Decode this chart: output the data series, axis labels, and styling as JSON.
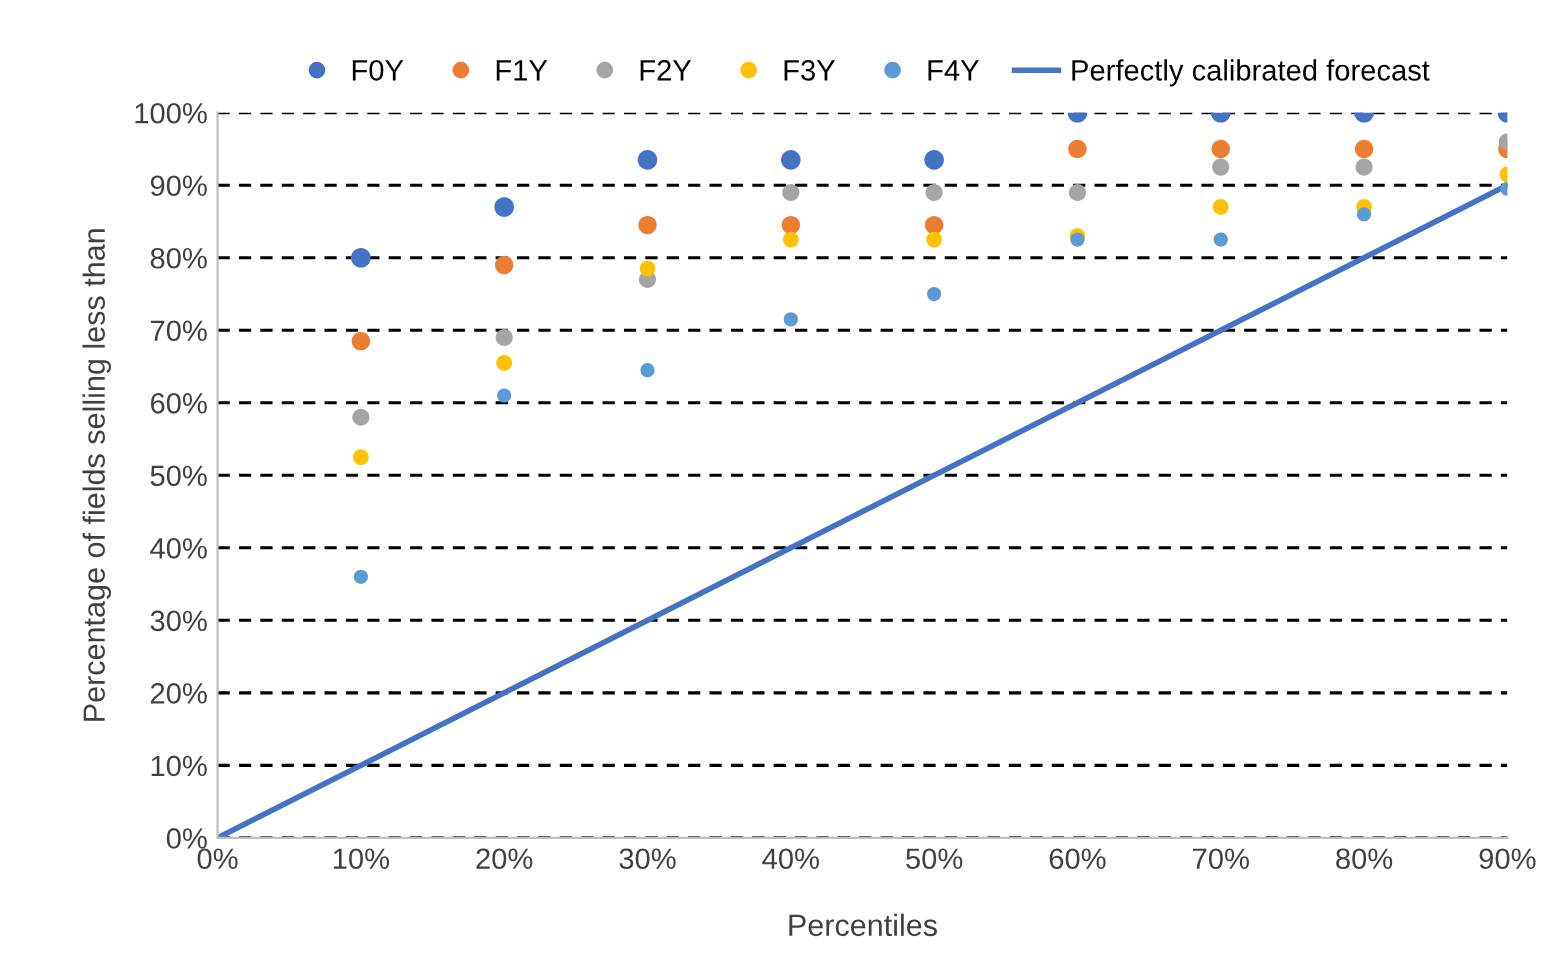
{
  "chart_data": {
    "type": "scatter",
    "xlabel": "Percentiles",
    "ylabel": "Percentage of fields selling less than",
    "x": [
      10,
      20,
      30,
      40,
      50,
      60,
      70,
      80,
      90
    ],
    "series": [
      {
        "name": "F0Y",
        "color": "#4472c4",
        "values": [
          80,
          87,
          93.5,
          93.5,
          93.5,
          100,
          100,
          100,
          100
        ]
      },
      {
        "name": "F1Y",
        "color": "#ed7d31",
        "values": [
          68.5,
          79,
          84.5,
          84.5,
          84.5,
          95,
          95,
          95,
          95
        ]
      },
      {
        "name": "F2Y",
        "color": "#a5a5a5",
        "values": [
          58,
          69,
          77,
          89,
          89,
          89,
          92.5,
          92.5,
          96
        ]
      },
      {
        "name": "F3Y",
        "color": "#ffc000",
        "values": [
          52.5,
          65.5,
          78.5,
          82.5,
          82.5,
          83,
          87,
          87,
          91.5
        ]
      },
      {
        "name": "F4Y",
        "color": "#5b9bd5",
        "values": [
          36,
          61,
          64.5,
          71.5,
          75,
          82.5,
          82.5,
          86,
          89.5
        ]
      },
      {
        "name": "Perfectly calibrated forecast",
        "type": "line",
        "color": "#4472c4",
        "x": [
          0,
          90
        ],
        "values": [
          0,
          90
        ],
        "marker": "none"
      }
    ],
    "xlim": [
      0,
      90
    ],
    "ylim": [
      0,
      100
    ],
    "xticks": [
      {
        "value": 0,
        "label": "0%"
      },
      {
        "value": 10,
        "label": "10%"
      },
      {
        "value": 20,
        "label": "20%"
      },
      {
        "value": 30,
        "label": "30%"
      },
      {
        "value": 40,
        "label": "40%"
      },
      {
        "value": 50,
        "label": "50%"
      },
      {
        "value": 60,
        "label": "60%"
      },
      {
        "value": 70,
        "label": "70%"
      },
      {
        "value": 80,
        "label": "80%"
      },
      {
        "value": 90,
        "label": "90%"
      }
    ],
    "yticks": [
      {
        "value": 0,
        "label": "0%"
      },
      {
        "value": 10,
        "label": "10%"
      },
      {
        "value": 20,
        "label": "20%"
      },
      {
        "value": 30,
        "label": "30%"
      },
      {
        "value": 40,
        "label": "40%"
      },
      {
        "value": 50,
        "label": "50%"
      },
      {
        "value": 60,
        "label": "60%"
      },
      {
        "value": 70,
        "label": "70%"
      },
      {
        "value": 80,
        "label": "80%"
      },
      {
        "value": 90,
        "label": "90%"
      },
      {
        "value": 100,
        "label": "100%"
      }
    ],
    "grid": "y",
    "legend": "top",
    "marker": "circle"
  }
}
